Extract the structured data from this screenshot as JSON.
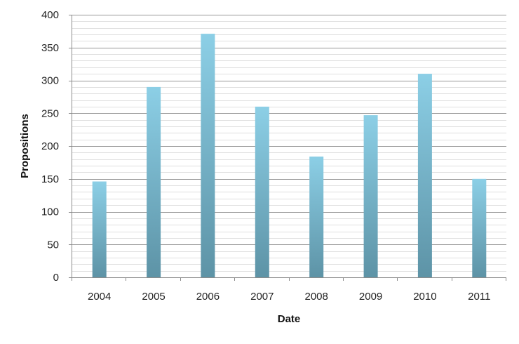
{
  "chart_data": {
    "type": "bar",
    "title": "",
    "xlabel": "Date",
    "ylabel": "Propositions",
    "categories": [
      "2004",
      "2005",
      "2006",
      "2007",
      "2008",
      "2009",
      "2010",
      "2011"
    ],
    "values": [
      146,
      290,
      371,
      260,
      184,
      247,
      310,
      150
    ],
    "ylim": [
      0,
      400
    ],
    "yticks": [
      0,
      50,
      100,
      150,
      200,
      250,
      300,
      350,
      400
    ],
    "minor_grid_step": 10,
    "grid": true,
    "legend": "none",
    "colors": {
      "bar_top": "#8ccfe6",
      "bar_bottom": "#5d93a6",
      "grid": "#8c8c8c",
      "axis": "#8c8c8c"
    }
  }
}
